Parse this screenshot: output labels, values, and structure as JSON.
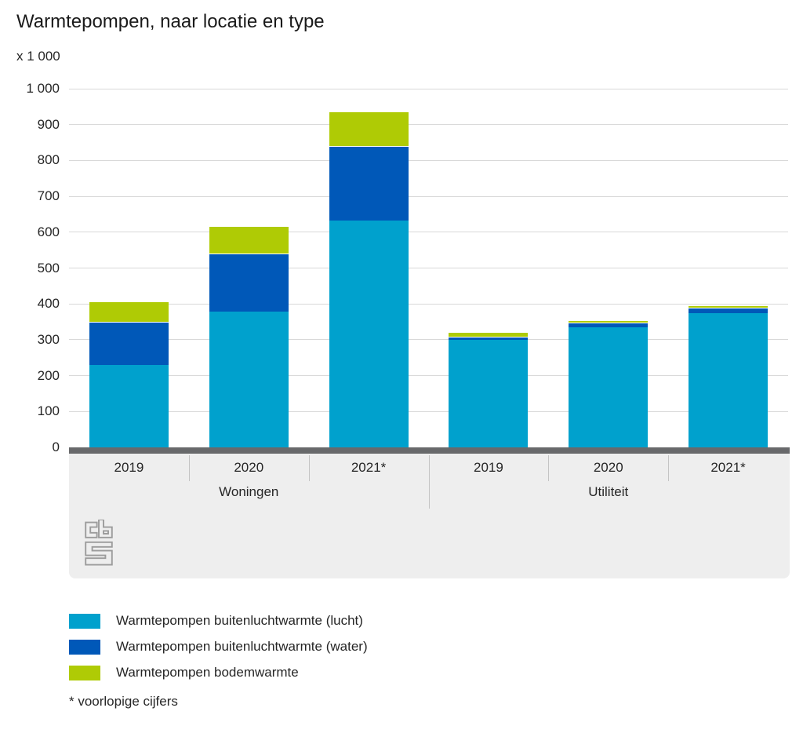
{
  "chart": {
    "title": "Warmtepompen, naar locatie en type",
    "unit_label": "x 1 000",
    "footnote": "* voorlopige cijfers"
  },
  "colors": {
    "lucht": "#00a1cd",
    "water": "#0058b8",
    "bodem": "#afcb05",
    "gridline": "#d9d9d9",
    "axis_band": "#68696b",
    "xband_background": "#eeeeee",
    "separator": "#c4c4c4",
    "logo_gray": "#9c9c9c"
  },
  "legend": {
    "items": [
      {
        "label": "Warmtepompen buitenluchtwarmte (lucht)",
        "color": "#00a1cd",
        "key": "lucht"
      },
      {
        "label": "Warmtepompen buitenluchtwarmte (water)",
        "color": "#0058b8",
        "key": "water"
      },
      {
        "label": "Warmtepompen bodemwarmte",
        "color": "#afcb05",
        "key": "bodem"
      }
    ]
  },
  "logo": {
    "name": "cbs-logo"
  },
  "chart_data": {
    "type": "bar",
    "stacked": true,
    "title": "Warmtepompen, naar locatie en type",
    "unit": "x 1 000",
    "categories": [
      "2019",
      "2020",
      "2021*",
      "2019",
      "2020",
      "2021*"
    ],
    "groups": [
      {
        "label": "Woningen",
        "category_indexes": [
          0,
          1,
          2
        ]
      },
      {
        "label": "Utiliteit",
        "category_indexes": [
          3,
          4,
          5
        ]
      }
    ],
    "series": [
      {
        "name": "Warmtepompen buitenluchtwarmte (lucht)",
        "color": "#00a1cd",
        "values": [
          230,
          379,
          633,
          299,
          334,
          374
        ]
      },
      {
        "name": "Warmtepompen buitenluchtwarmte (water)",
        "color": "#0058b8",
        "values": [
          120,
          161,
          208,
          10,
          14,
          15
        ]
      },
      {
        "name": "Warmtepompen bodemwarmte",
        "color": "#afcb05",
        "values": [
          58,
          77,
          96,
          12,
          7,
          6
        ]
      }
    ],
    "totals": [
      408,
      617,
      937,
      321,
      355,
      395
    ],
    "ylim": [
      0,
      1000
    ],
    "y_ticks": [
      {
        "value": 0,
        "label": "0"
      },
      {
        "value": 100,
        "label": "100"
      },
      {
        "value": 200,
        "label": "200"
      },
      {
        "value": 300,
        "label": "300"
      },
      {
        "value": 400,
        "label": "400"
      },
      {
        "value": 500,
        "label": "500"
      },
      {
        "value": 600,
        "label": "600"
      },
      {
        "value": 700,
        "label": "700"
      },
      {
        "value": 800,
        "label": "800"
      },
      {
        "value": 900,
        "label": "900"
      },
      {
        "value": 1000,
        "label": "1 000"
      }
    ],
    "grid": true,
    "legend_position": "bottom",
    "footnote": "* voorlopige cijfers"
  }
}
